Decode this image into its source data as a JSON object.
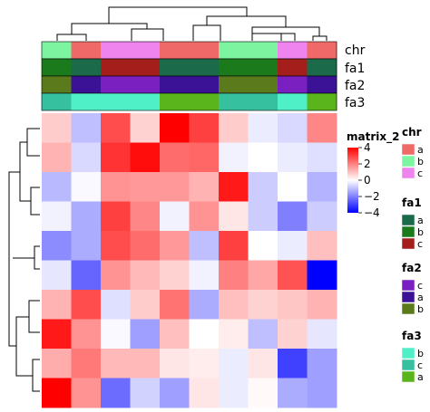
{
  "chart_data": {
    "type": "heatmap",
    "row_annotation_names": [
      "chr",
      "fa1",
      "fa2",
      "fa3"
    ],
    "annotations": {
      "chr": [
        "b",
        "a",
        "c",
        "c",
        "a",
        "a",
        "b",
        "b",
        "c",
        "a"
      ],
      "fa1": [
        "b",
        "a",
        "c",
        "c",
        "a",
        "a",
        "b",
        "b",
        "c",
        "a"
      ],
      "fa2": [
        "b",
        "a",
        "c",
        "c",
        "a",
        "a",
        "b",
        "b",
        "c",
        "a"
      ],
      "fa3": [
        "c",
        "b",
        "b",
        "b",
        "a",
        "a",
        "c",
        "c",
        "b",
        "a"
      ]
    },
    "annotation_colors": {
      "chr": {
        "a": "#F06969",
        "b": "#7CF4A0",
        "c": "#EF84EF"
      },
      "fa1": {
        "a": "#1B6B4B",
        "b": "#1B7A1B",
        "c": "#A41F1B"
      },
      "fa2": {
        "c": "#7A1FC0",
        "a": "#3B1196",
        "b": "#5B7A1B"
      },
      "fa3": {
        "b": "#4FF0C8",
        "c": "#37C0A0",
        "a": "#5AB41B"
      }
    },
    "legends": [
      {
        "title": "chr",
        "labels": [
          "a",
          "b",
          "c"
        ]
      },
      {
        "title": "fa1",
        "labels": [
          "a",
          "b",
          "c"
        ]
      },
      {
        "title": "fa2",
        "labels": [
          "c",
          "a",
          "b"
        ]
      },
      {
        "title": "fa3",
        "labels": [
          "b",
          "c",
          "a"
        ]
      }
    ],
    "color_scale": {
      "title": "matrix_2",
      "ticks": [
        4,
        2,
        0,
        -2,
        -4
      ],
      "min": -4,
      "max": 4,
      "low": "#0000FF",
      "mid": "#FFFFFF",
      "high": "#FF0000"
    },
    "matrix": [
      [
        0.8,
        -1.0,
        2.8,
        0.7,
        4.2,
        3.0,
        0.8,
        -0.3,
        -0.6,
        1.9
      ],
      [
        1.2,
        -0.6,
        3.2,
        3.8,
        2.3,
        2.4,
        -0.2,
        0.0,
        -0.3,
        -0.5
      ],
      [
        -1.1,
        -0.1,
        1.7,
        1.6,
        1.6,
        1.2,
        3.6,
        -0.8,
        0.0,
        -1.2
      ],
      [
        -0.2,
        -1.3,
        3.0,
        1.9,
        -0.2,
        1.7,
        0.4,
        -0.8,
        -2.0,
        -0.8
      ],
      [
        -1.8,
        -1.3,
        2.8,
        2.3,
        1.6,
        -1.0,
        3.0,
        0.0,
        -0.3,
        1.0
      ],
      [
        -0.4,
        -2.4,
        1.7,
        1.1,
        0.7,
        -0.2,
        2.0,
        1.4,
        2.7,
        -4.0
      ],
      [
        1.2,
        2.8,
        -0.5,
        0.8,
        2.2,
        -1.3,
        1.0,
        0.7,
        0.9,
        1.2
      ],
      [
        3.6,
        1.7,
        -0.1,
        -1.5,
        1.0,
        0.0,
        0.3,
        -1.0,
        0.7,
        -0.4
      ],
      [
        1.3,
        2.1,
        1.1,
        1.1,
        0.4,
        0.3,
        -0.3,
        0.4,
        -3.0,
        -1.5
      ],
      [
        4.0,
        1.7,
        -2.3,
        -0.7,
        -1.5,
        0.4,
        -0.3,
        0.1,
        -1.3,
        -1.5
      ]
    ]
  }
}
